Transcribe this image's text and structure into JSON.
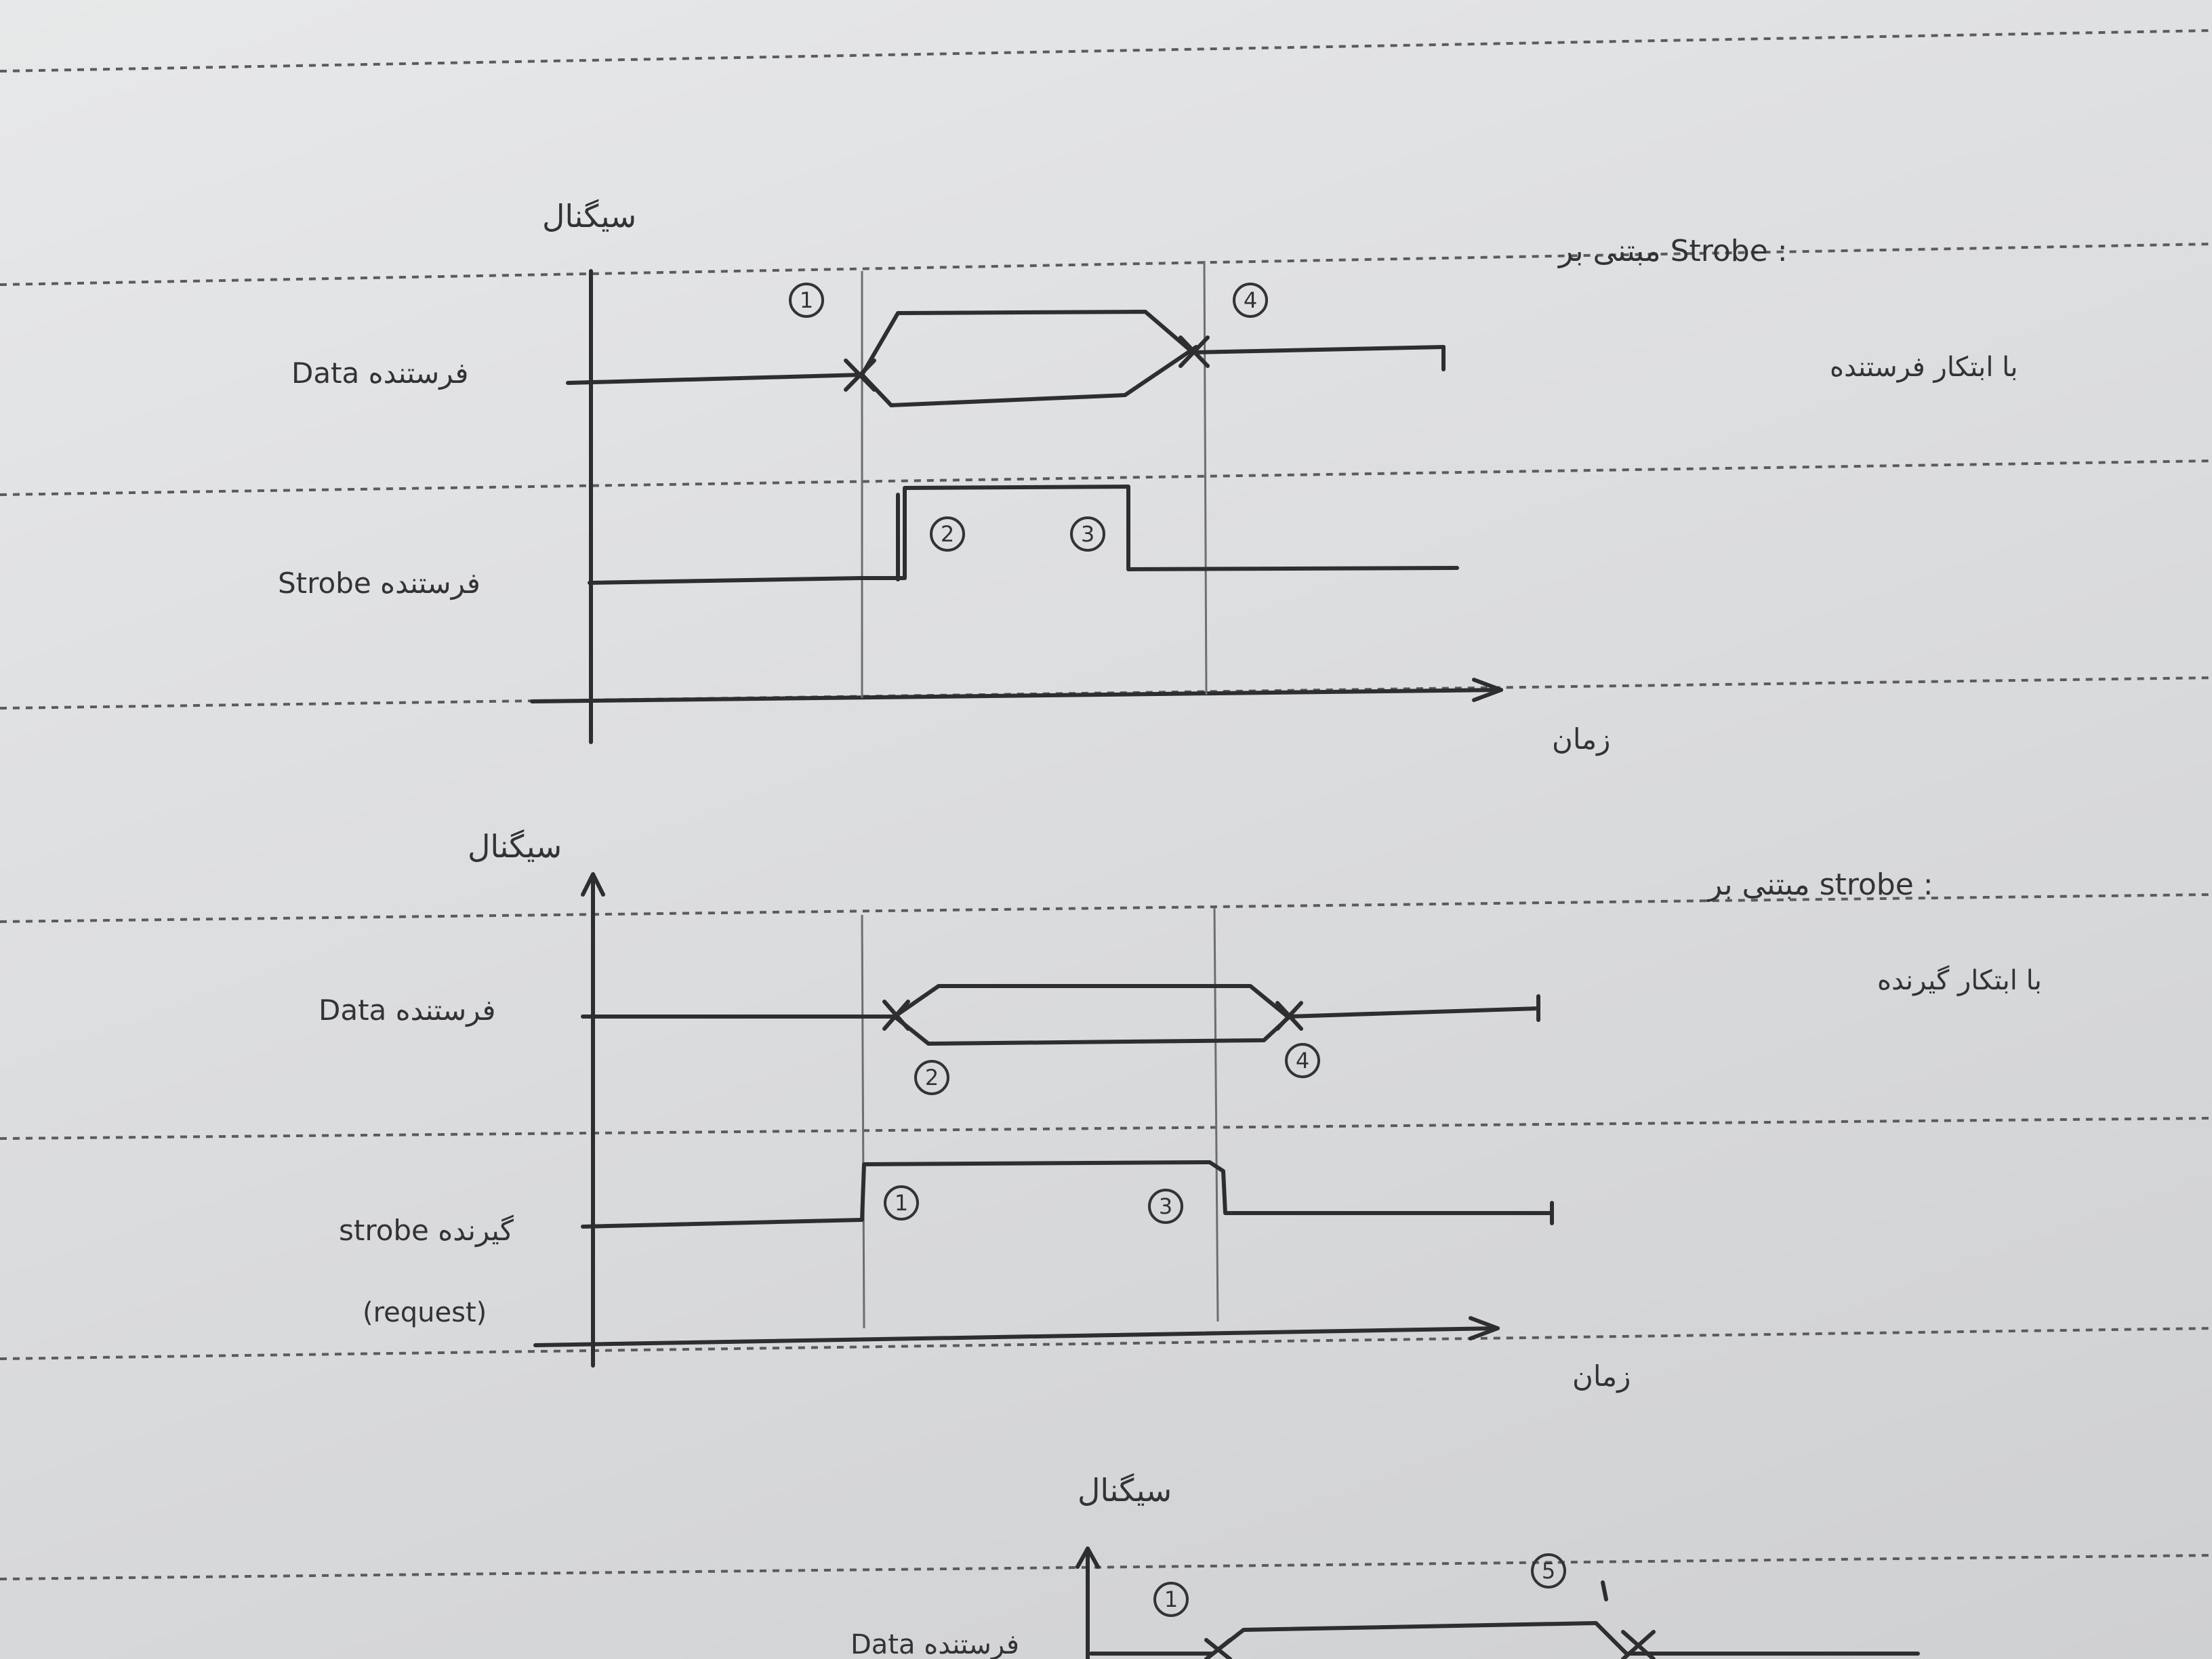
{
  "diagram_top": {
    "y_axis_label": "سیگنال",
    "x_axis_label": "زمان",
    "title": "مبتنی بر Strobe :",
    "subtitle": "با ابتکار فرستنده",
    "row_labels": [
      "Data فرستنده",
      "Strobe فرستنده"
    ],
    "markers": [
      "1",
      "2",
      "3",
      "4"
    ]
  },
  "diagram_middle": {
    "y_axis_label": "سیگنال",
    "x_axis_label": "زمان",
    "title": "مبتنی بر strobe :",
    "subtitle": "با ابتکار گیرنده",
    "row_labels": [
      "Data فرستنده",
      "strobe گیرنده",
      "(request)"
    ],
    "markers": [
      "1",
      "2",
      "3",
      "4"
    ]
  },
  "diagram_bottom": {
    "y_axis_label": "سیگنال",
    "row_labels": [
      "Data فرستنده"
    ],
    "markers": [
      "1",
      "5"
    ]
  }
}
